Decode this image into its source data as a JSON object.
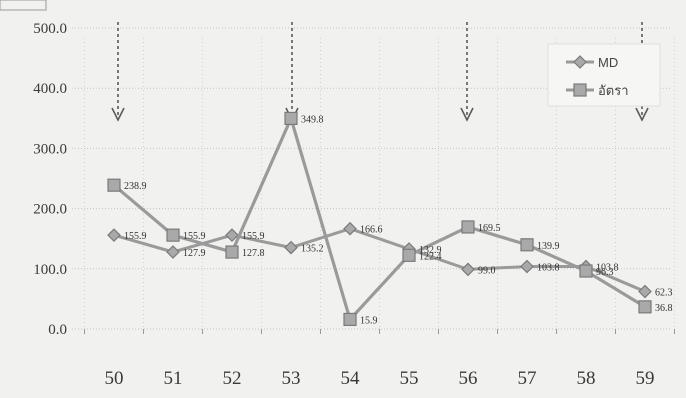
{
  "chart_data": {
    "type": "line",
    "categories": [
      "50",
      "51",
      "52",
      "53",
      "54",
      "55",
      "56",
      "57",
      "58",
      "59"
    ],
    "series": [
      {
        "name": "MD",
        "marker": "diamond",
        "values": [
          155.9,
          127.9,
          155.9,
          135.2,
          166.6,
          132.9,
          99.0,
          103.8,
          103.8,
          62.3
        ],
        "labels": [
          "155.9",
          "127.9",
          "155.9",
          "135.2",
          "166.6",
          "132.9",
          "99.0",
          "103.8",
          "103.8",
          "62.3"
        ]
      },
      {
        "name": "อัตรา",
        "marker": "square",
        "values": [
          238.9,
          155.9,
          127.8,
          349.8,
          15.9,
          122.4,
          169.5,
          139.9,
          96.3,
          36.8
        ],
        "labels": [
          "238.9",
          "155.9",
          "127.8",
          "349.8",
          "15.9",
          "122.4",
          "169.5",
          "139.9",
          "96.3",
          "36.8"
        ]
      }
    ],
    "yticks": [
      "0.0",
      "100.0",
      "200.0",
      "300.0",
      "400.0",
      "500.0"
    ],
    "ylim": [
      0,
      500
    ],
    "grid": true,
    "legend_position": "top-right",
    "arrows_at": [
      "50",
      "53",
      "56",
      "59"
    ],
    "colors": {
      "line": "#9a9a9a",
      "marker_fill": "#a9a9a9",
      "marker_stroke": "#7a7a7a",
      "background": "#f1f1ef"
    }
  }
}
